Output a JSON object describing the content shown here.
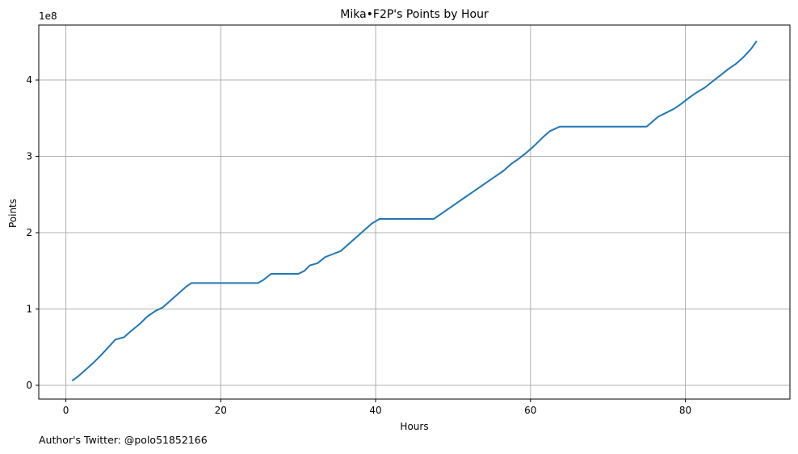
{
  "chart_data": {
    "type": "line",
    "title": "Mika•F2P's Points by Hour",
    "xlabel": "Hours",
    "ylabel": "Points",
    "offset_label": "1e8",
    "y_scale": 100000000,
    "xlim": [
      -3.5,
      93.5
    ],
    "ylim": [
      -0.18,
      4.72
    ],
    "x_ticks": [
      0,
      20,
      40,
      60,
      80
    ],
    "y_ticks": [
      0,
      1,
      2,
      3,
      4
    ],
    "grid": true,
    "line_color": "#1f77b4",
    "series": [
      {
        "x": [
          0.8,
          1.5,
          2.5,
          3.5,
          4.5,
          5.5,
          6.4,
          7.5,
          8.5,
          9.5,
          10.5,
          11.5,
          12.5,
          13.5,
          14.5,
          15.5,
          16.2,
          20,
          24.8,
          25.5,
          26.5,
          28,
          30,
          30.8,
          31.5,
          32.5,
          33.5,
          34.5,
          35.5,
          36.5,
          37.5,
          38.5,
          39.5,
          40.5,
          44,
          47.5,
          48.5,
          49.5,
          50.5,
          51.5,
          52.5,
          53.5,
          54.5,
          55.5,
          56.5,
          57.5,
          58.5,
          59.5,
          60.5,
          61.5,
          62.5,
          63.8,
          70,
          75,
          75.8,
          76.5,
          77.5,
          78.5,
          79.5,
          80.5,
          81.5,
          82.5,
          83.5,
          84.5,
          85.5,
          86.5,
          87.5,
          88.5,
          89.2
        ],
        "y": [
          0.06,
          0.11,
          0.2,
          0.29,
          0.39,
          0.5,
          0.6,
          0.63,
          0.72,
          0.8,
          0.9,
          0.97,
          1.02,
          1.11,
          1.2,
          1.29,
          1.34,
          1.34,
          1.34,
          1.38,
          1.46,
          1.46,
          1.46,
          1.5,
          1.57,
          1.6,
          1.68,
          1.72,
          1.76,
          1.85,
          1.94,
          2.03,
          2.12,
          2.18,
          2.18,
          2.18,
          2.25,
          2.32,
          2.39,
          2.46,
          2.53,
          2.6,
          2.67,
          2.74,
          2.81,
          2.9,
          2.97,
          3.05,
          3.14,
          3.24,
          3.33,
          3.39,
          3.39,
          3.39,
          3.46,
          3.52,
          3.57,
          3.62,
          3.69,
          3.77,
          3.84,
          3.9,
          3.98,
          4.06,
          4.14,
          4.21,
          4.3,
          4.41,
          4.51
        ]
      }
    ]
  },
  "footer": {
    "text": "Author's Twitter: @polo51852166"
  }
}
